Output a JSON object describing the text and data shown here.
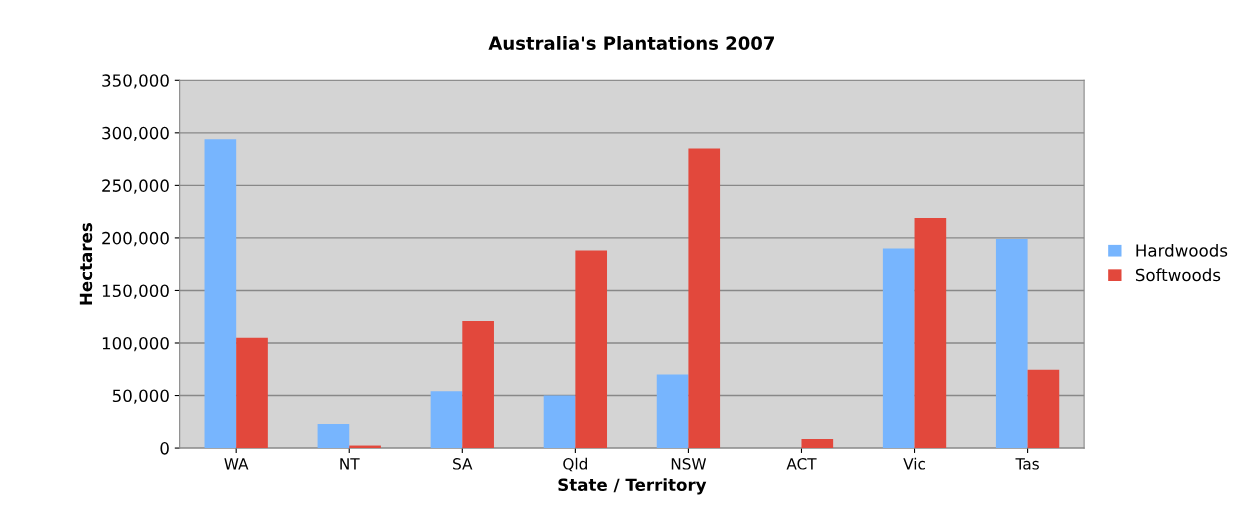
{
  "chart_data": {
    "type": "bar",
    "title": "Australia's Plantations 2007",
    "xlabel": "State / Territory",
    "ylabel": "Hectares",
    "categories": [
      "WA",
      "NT",
      "SA",
      "Qld",
      "NSW",
      "ACT",
      "Vic",
      "Tas"
    ],
    "series": [
      {
        "name": "Hardwoods",
        "color": "#77b5fe",
        "values": [
          294000,
          23000,
          54000,
          50000,
          70000,
          0,
          190000,
          199000
        ]
      },
      {
        "name": "Softwoods",
        "color": "#e2483c",
        "values": [
          105000,
          2400,
          121000,
          188000,
          285000,
          8600,
          219000,
          74500
        ]
      }
    ],
    "ylim": [
      0,
      350000
    ],
    "yticks": [
      {
        "value": 0,
        "label": "0"
      },
      {
        "value": 50000,
        "label": "50,000"
      },
      {
        "value": 100000,
        "label": "100,000"
      },
      {
        "value": 150000,
        "label": "150,000"
      },
      {
        "value": 200000,
        "label": "200,000"
      },
      {
        "value": 250000,
        "label": "250,000"
      },
      {
        "value": 300000,
        "label": "300,000"
      },
      {
        "value": 350000,
        "label": "350,000"
      }
    ],
    "grid": "y",
    "legend": "right"
  }
}
